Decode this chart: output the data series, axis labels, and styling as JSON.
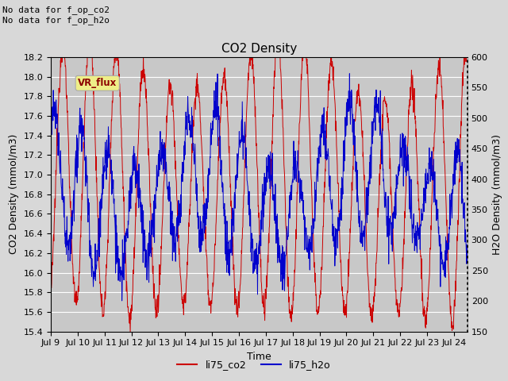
{
  "title": "CO2 Density",
  "xlabel": "Time",
  "ylabel_left": "CO2 Density (mmol/m3)",
  "ylabel_right": "H2O Density (mmol/m3)",
  "ylim_left": [
    15.4,
    18.2
  ],
  "ylim_right": [
    150,
    600
  ],
  "xtick_labels": [
    "Jul 9",
    "Jul 10",
    "Jul 11",
    "Jul 12",
    "Jul 13",
    "Jul 14",
    "Jul 15",
    "Jul 16",
    "Jul 17",
    "Jul 18",
    "Jul 19",
    "Jul 20",
    "Jul 21",
    "Jul 22",
    "Jul 23",
    "Jul 24"
  ],
  "color_co2": "#cc0000",
  "color_h2o": "#0000cc",
  "fig_bg_color": "#d8d8d8",
  "plot_bg_color": "#c8c8c8",
  "annotation_text": "No data for f_op_co2\nNo data for f_op_h2o",
  "vr_flux_label": "VR_flux",
  "legend_labels": [
    "li75_co2",
    "li75_h2o"
  ],
  "title_fontsize": 11,
  "axis_label_fontsize": 9,
  "tick_fontsize": 8,
  "annot_fontsize": 8
}
